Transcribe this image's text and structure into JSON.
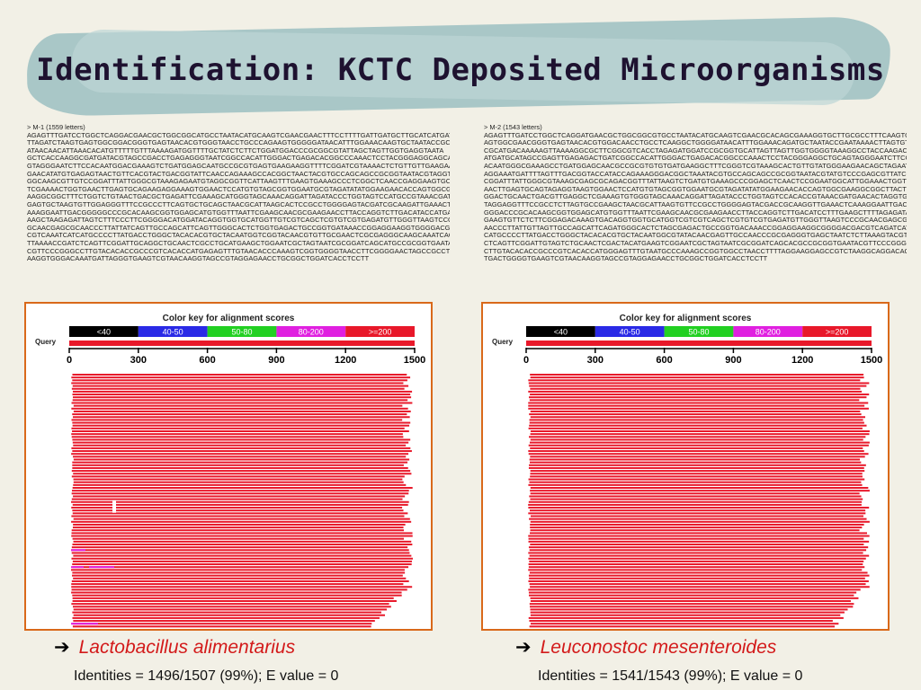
{
  "title": "Identification: KCTC Deposited Microorganisms",
  "colors": {
    "accent": "#d31a1a",
    "hit_bar": "#e8182a",
    "panel_border": "#d9691a"
  },
  "left": {
    "seq_header": "> M-1 (1559 letters)",
    "sequence": "AGAGTTTGATCCTGGCTCAGGACGAACGCTGGCGGCATGCCTAATACATGCAAGTCGAACGAACTTTCCTTTTGATTGATGCTTGCATCATGAT\nTTAGATCTAAGTGAGTGGCGGACGGGTGAGTAACACGTGGGTAACCTGCCCAGAAGTGGGGGATAACATTTGGAAACAAGTGCTAATACCGC\nATAACAACATTAAACACATGTTTTTGTTTAAAAGATGGTTTTGCTATCTCTTCTGGATGGACCCGCGGCGTATTAGCTAGTTGGTGAGGTAATA\nGCTCACCAAGGCGATGATACGTAGCCGACCTGAGAGGGTAATCGGCCACATTGGGACTGAGACACGGCCCAAACTCCTACGGGAGGCAGCA\nGTAGGGAATCTTCCACAATGGACGAAAGTCTGATGGAGCAATGCCGCGTGAGTGAAGAAGGTTTTCGGATCGTAAAACTCTGTTGTTGAAGAA\nGAACATATGTGAGAGTAACTGTTCACGTACTGACGGTATTCAACCAGAAAGCCACGGCTAACTACGTGCCAGCAGCCGCGGTAATACGTAGGT\nGGCAAGCGTTGTCCGGATTTATTGGGCGTAAAGAGAATGTAGGCGGTTCATTAAGTTTGAAGTGAAAGCCCTCGGCTCAACCGAGGAAGTGCT\nTCGAAAACTGGTGAACTTGAGTGCAGAAGAGGAAAGTGGAACTCCATGTGTAGCGGTGGAATGCGTAGATATATGGAAGAACACCAGTGGCG\nAAGGCGGCTTTCTGGTCTGTAACTGACGCTGAGATTCGAAAGCATGGGTAGCAAACAGGATTAGATACCCTGGTAGTCCATGCCGTAAACGAT\nGAGTGCTAAGTGTTGGAGGGTTTCCGCCCTTCAGTGCTGCAGCTAACGCATTAAGCACTCCGCCTGGGGAGTACGATCGCAAGATTGAAACTC\nAAAGGAATTGACGGGGGCCCGCACAAGCGGTGGAGCATGTGGTTTAATTCGAAGCAACGCGAAGAACCTTACCAGGTCTTGACATACCATGAA\nAAGCTAAGAGATTAGTCTTTCCCTTCGGGGACATGGATACAGGTGGTGCATGGTTGTCGTCAGCTCGTGTCGTGAGATGTTGGGTTAAGTCCC\nGCAACGAGCGCAACCCTTATTATCAGTTGCCAGCATTCAGTTGGGCACTCTGGTGAGACTGCCGGTGATAAACCGGAGGAAGGTGGGGACGA\nCGTCAAATCATCATGCCCCTTATGACCTGGGCTACACACGTGCTACAATGGTCGGTACAACGTGTTGCGAACTCGCGAGGGCAAGCAAATCAC\nTTAAAACCGATCTCAGTTCGGATTGCAGGCTGCAACTCGCCTGCATGAAGCTGGAATCGCTAGTAATCGCGGATCAGCATGCCGCGGTGAATA\nCGTTCCCGGGCCTTGTACACACCGCCCGTCACACCATGAGAGTTTGTAACACCCAAAGTCGGTGGGGTAACCTTCGGGGAACTAGCCGCCT\nAAGGTGGGACAAATGATTAGGGTGAAGTCGTAACAAGGTAGCCGTAGGAGAACCTGCGGCTGGATCACCTCCTT",
    "organism": "Lactobacillus alimentarius",
    "identities": "Identities = 1496/1507 (99%); E value = 0"
  },
  "right": {
    "seq_header": "> M-2 (1543 letters)",
    "sequence": "AGAGTTTGATCCTGGCTCAGGATGAACGCTGGCGGCGTGCCTAATACATGCAAGTCGAACGCACAGCGAAAGGTGCTTGCGCCTTTCAAGTG\nAGTGGCGAACGGGTGAGTAACACGTGGACAACCTGCCTCAAGGCTGGGGATAACATTTGGAAACAGATGCTAATACCGAATAAAACTTAGTGT\nCGCATGACAAAAAGTTAAAAGGCGCTTCGGCGTCACCTAGAGATGGATCCGCGGTGCATTAGTTAGTTGGTGGGGTAAAGGCCTACCAAGACA\nATGATGCATAGCCGAGTTGAGAGACTGATCGGCCACATTGGGACTGAGACACGGCCCAAACTCCTACGGGAGGCTGCAGTAGGGAATCTTCC\nACAATGGGCGAAAGCCTGATGGAGCAACGCCGCGTGTGTGATGAAGGCTTTCGGGTCGTAAAGCACTGTTGTATGGGAAGAACAGCTAGAAT\nAGGAAATGATTTTAGTTTGACGGTACCATACCAGAAAGGGACGGCTAAATACGTGCCAGCAGCCGCGGTAATACGTATGTCCCGAGCGTTATC\nCGGATTTATTGGGCGTAAAGCGAGCGCAGACGGTTTATTAAGTCTGATGTGAAAGCCCGGAGCTCAACTCCGGAATGGCATTGGAAACTGGTT\nAACTTGAGTGCAGTAGAGGTAAGTGGAACTCCATGTGTAGCGGTGGAATGCGTAGATATATGGAAGAACACCAGTGGCGAAGGCGGCTTACT\nGGACTGCAACTGACGTTGAGGCTCGAAAGTGTGGGTAGCAAACAGGATTAGATACCCTGGTAGTCCACACCGTAAACGATGAACACTAGGTGT\nTAGGAGGTTTCCGCCTCTTAGTGCCGAAGCTAACGCATTAAGTGTTCCGCCTGGGGAGTACGACCGCAAGGTTGAAACTCAAAGGAATTGACG\nGGGACCCGCACAAGCGGTGGAGCATGTGGTTTAATTCGAAGCAACGCGAAGAACCTTACCAGGTCTTGACATCCTTTGAAGCTTTTAGAGATA\nGAAGTGTTCTCTTCGGAGACAAAGTGACAGGTGGTGCATGGTCGTCGTCAGCTCGTGTCGTGAGATGTTGGGTTAAGTCCCGCAACGAGCGC\nAACCCTTATTGTTAGTTGCCAGCATTCAGATGGGCACTCTAGCGAGACTGCCGGTGACAAACCGGAGGAAGGCGGGGACGACGTCAGATCAT\nCATGCCCCTTATGACCTGGGCTACACACGTGCTACAATGGCGTATACAACGAGTTGCCAACCCGCGAGGGTGAGCTAATCTCTTAAAGTACGT\nCTCAGTTCGGATTGTAGTCTGCAACTCGACTACATGAAGTCGGAATCGCTAGTAATCGCGGATCAGCACGCCGCGGTGAATACGTTCCCGGGT\nCTTGTACACACCGCCCGTCACACCATGGGAGTTTGTAATGCCCAAAGCCGGTGGCCTAACCTTTTAGGAAGGAGCCGTCTAAGGCAGGACAGA\nTGACTGGGGTGAAGTCGTAACAAGGTAGCCGTAGGAGAACCTGCGGCTGGATCACCTCCTT",
    "organism": "Leuconostoc mesenteroides",
    "identities": "Identities = 1541/1543 (99%); E value = 0"
  },
  "blast": {
    "key_title": "Color key for alignment scores",
    "query_label": "Query",
    "key": [
      {
        "label": "<40",
        "color": "#000000"
      },
      {
        "label": "40-50",
        "color": "#2a2ae6"
      },
      {
        "label": "50-80",
        "color": "#22d022"
      },
      {
        "label": "80-200",
        "color": "#e020e0"
      },
      {
        "label": ">=200",
        "color": "#e8182a"
      }
    ],
    "ticks": [
      "0",
      "300",
      "600",
      "900",
      "1200",
      "1500"
    ],
    "axis_max": 1500
  }
}
